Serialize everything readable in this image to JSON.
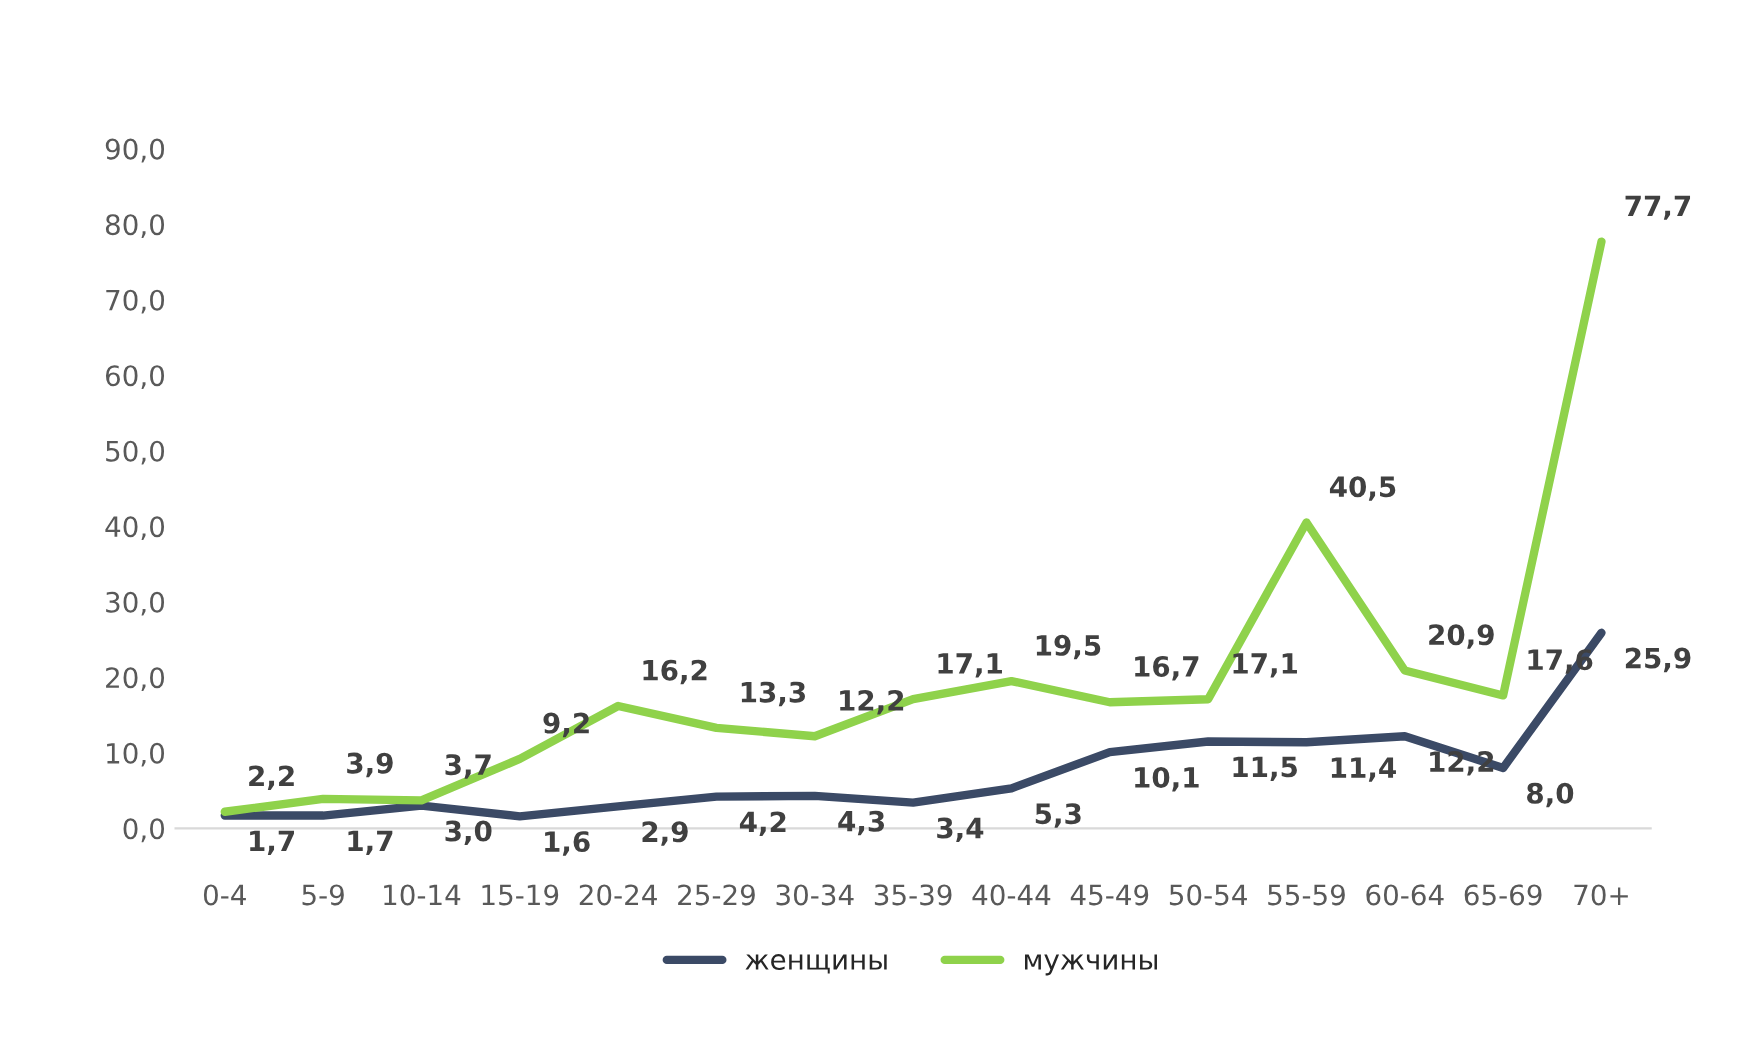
{
  "chart_data": {
    "type": "line",
    "categories": [
      "0-4",
      "5-9",
      "10-14",
      "15-19",
      "20-24",
      "25-29",
      "30-34",
      "35-39",
      "40-44",
      "45-49",
      "50-54",
      "55-59",
      "60-64",
      "65-69",
      "70+"
    ],
    "series": [
      {
        "name": "женщины",
        "color": "#3b4a66",
        "values": [
          1.7,
          1.7,
          3.0,
          1.6,
          2.9,
          4.2,
          4.3,
          3.4,
          5.3,
          10.1,
          11.5,
          11.4,
          12.2,
          8.0,
          25.9
        ],
        "value_labels": [
          "1,7",
          "1,7",
          "3,0",
          "1,6",
          "2,9",
          "4,2",
          "4,3",
          "3,4",
          "5,3",
          "10,1",
          "11,5",
          "11,4",
          "12,2",
          "8,0",
          "25,9"
        ]
      },
      {
        "name": "мужчины",
        "color": "#8fd24b",
        "values": [
          2.2,
          3.9,
          3.7,
          9.2,
          16.2,
          13.3,
          12.2,
          17.1,
          19.5,
          16.7,
          17.1,
          40.5,
          20.9,
          17.6,
          77.7
        ],
        "value_labels": [
          "2,2",
          "3,9",
          "3,7",
          "9,2",
          "16,2",
          "13,3",
          "12,2",
          "17,1",
          "19,5",
          "16,7",
          "17,1",
          "40,5",
          "20,9",
          "17,6",
          "77,7"
        ]
      }
    ],
    "ylim": [
      0,
      90
    ],
    "yticks": [
      {
        "value": 0,
        "label": "0,0"
      },
      {
        "value": 10,
        "label": "10,0"
      },
      {
        "value": 20,
        "label": "20,0"
      },
      {
        "value": 30,
        "label": "30,0"
      },
      {
        "value": 40,
        "label": "40,0"
      },
      {
        "value": 50,
        "label": "50,0"
      },
      {
        "value": 60,
        "label": "60,0"
      },
      {
        "value": 70,
        "label": "70,0"
      },
      {
        "value": 80,
        "label": "80,0"
      },
      {
        "value": 90,
        "label": "90,0"
      }
    ],
    "grid": false,
    "legend": "bottom",
    "marker": "none",
    "line_style": "solid"
  }
}
